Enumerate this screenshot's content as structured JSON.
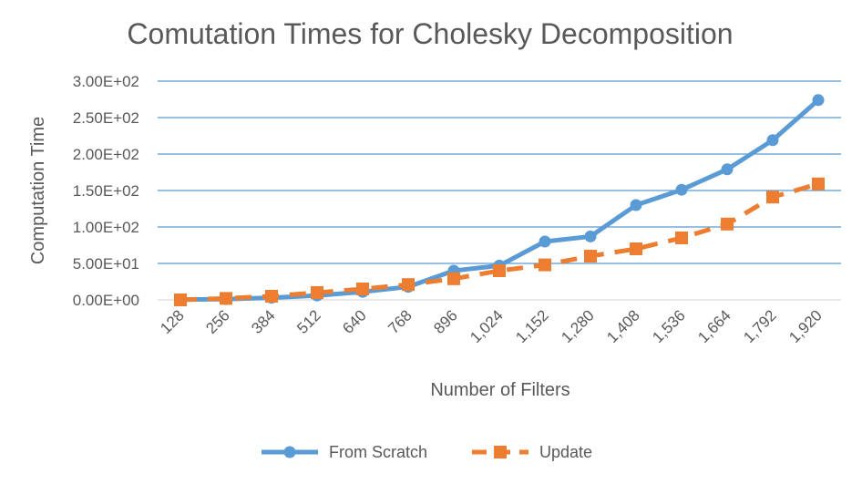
{
  "chart_data": {
    "type": "line",
    "title": "Comutation Times for Cholesky Decomposition",
    "xlabel": "Number of Filters",
    "ylabel": "Computation Time",
    "categories": [
      "128",
      "256",
      "384",
      "512",
      "640",
      "768",
      "896",
      "1,024",
      "1,152",
      "1,280",
      "1,408",
      "1,536",
      "1,664",
      "1,792",
      "1,920"
    ],
    "ylim": [
      0,
      300
    ],
    "yticks": [
      0,
      50,
      100,
      150,
      200,
      250,
      300
    ],
    "ytick_labels": [
      "0.00E+00",
      "5.00E+01",
      "1.00E+02",
      "1.50E+02",
      "2.00E+02",
      "2.50E+02",
      "3.00E+02"
    ],
    "grid": true,
    "legend_position": "bottom",
    "series": [
      {
        "name": "From Scratch",
        "color": "#5B9BD5",
        "marker": "circle",
        "line_style": "solid",
        "values": [
          0.5,
          1,
          3,
          6,
          11,
          18,
          40,
          47,
          80,
          87,
          130,
          151,
          179,
          219,
          274
        ]
      },
      {
        "name": "Update",
        "color": "#ED7D31",
        "marker": "square",
        "line_style": "dashed",
        "values": [
          0,
          2,
          5,
          10,
          15,
          21,
          29,
          40,
          48,
          60,
          70,
          85,
          104,
          141,
          159
        ]
      }
    ]
  }
}
